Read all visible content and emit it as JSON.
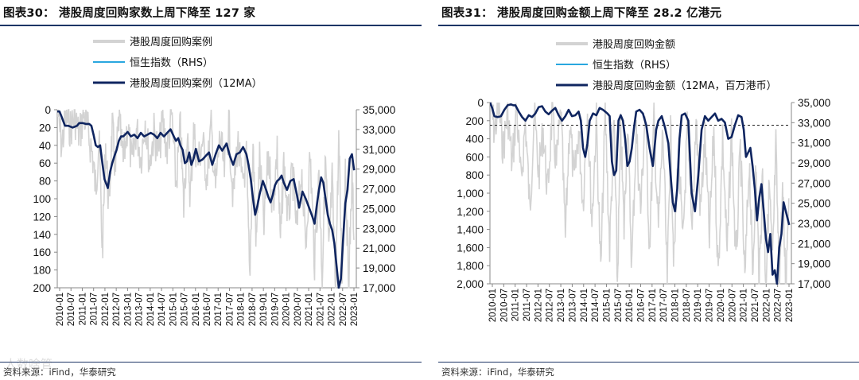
{
  "left": {
    "title": "图表30：  港股周度回购家数上周下降至 127 家",
    "source": "资料来源：iFind，华泰研究",
    "watermark": "人数啥管",
    "legend": [
      "港股周度回购案例",
      "恒生指数（RHS）",
      "港股周度回购案例（12MA）"
    ]
  },
  "right": {
    "title": "图表31：  港股周度回购金额上周下降至 28.2 亿港元",
    "source": "资料来源：iFind，华泰研究",
    "legend": [
      "港股周度回购金额",
      "恒生指数（RHS）",
      "港股周度回购金额（12MA，百万港币）"
    ]
  },
  "colors": {
    "weekly": "#d3d3d3",
    "ma": "#0f2560",
    "hsi": "#29a7df",
    "rule": "#1d3566"
  },
  "chart_data": [
    {
      "type": "line",
      "title": "港股周度回购家数上周下降至 127 家",
      "y_left": {
        "ticks": [
          "0",
          "20",
          "40",
          "60",
          "80",
          "100",
          "120",
          "140",
          "160",
          "180",
          "200"
        ],
        "range": [
          0,
          200
        ],
        "inverted": true
      },
      "y_right": {
        "ticks": [
          "35,000",
          "33,000",
          "31,000",
          "29,000",
          "27,000",
          "25,000",
          "23,000",
          "21,000",
          "19,000",
          "17,000"
        ],
        "range": [
          17000,
          35000
        ]
      },
      "x_ticks": [
        "2010-01",
        "2010-07",
        "2011-01",
        "2011-07",
        "2012-01",
        "2012-07",
        "2013-01",
        "2013-07",
        "2014-01",
        "2014-07",
        "2015-01",
        "2015-07",
        "2016-01",
        "2016-07",
        "2017-01",
        "2017-07",
        "2018-01",
        "2018-07",
        "2019-01",
        "2019-07",
        "2020-01",
        "2020-07",
        "2021-01",
        "2021-07",
        "2022-01",
        "2022-07",
        "2023-01"
      ],
      "x_range": [
        2010.0,
        2023.6
      ],
      "series": [
        {
          "name": "港股周度回购案例（12MA）",
          "x": [
            2010.0,
            2010.1,
            2010.2,
            2010.35,
            2010.5,
            2010.7,
            2010.9,
            2011.0,
            2011.15,
            2011.3,
            2011.45,
            2011.55,
            2011.65,
            2011.75,
            2011.85,
            2011.95,
            2012.05,
            2012.15,
            2012.3,
            2012.4,
            2012.5,
            2012.6,
            2012.7,
            2012.8,
            2012.9,
            2013.0,
            2013.2,
            2013.35,
            2013.5,
            2013.65,
            2013.8,
            2013.95,
            2014.1,
            2014.25,
            2014.4,
            2014.55,
            2014.7,
            2014.85,
            2015.0,
            2015.15,
            2015.3,
            2015.4,
            2015.5,
            2015.6,
            2015.7,
            2015.8,
            2015.9,
            2016.0,
            2016.1,
            2016.2,
            2016.3,
            2016.45,
            2016.6,
            2016.75,
            2016.9,
            2017.05,
            2017.2,
            2017.35,
            2017.5,
            2017.6,
            2017.7,
            2017.85,
            2018.0,
            2018.15,
            2018.3,
            2018.45,
            2018.6,
            2018.7,
            2018.8,
            2018.9,
            2019.0,
            2019.1,
            2019.2,
            2019.35,
            2019.5,
            2019.6,
            2019.7,
            2019.8,
            2019.9,
            2020.0,
            2020.1,
            2020.2,
            2020.3,
            2020.45,
            2020.6,
            2020.75,
            2020.9,
            2021.0,
            2021.15,
            2021.3,
            2021.45,
            2021.6,
            2021.7,
            2021.8,
            2021.9,
            2022.0,
            2022.1,
            2022.2,
            2022.3,
            2022.4,
            2022.5,
            2022.6,
            2022.7,
            2022.8,
            2022.9,
            2023.0,
            2023.1,
            2023.2,
            2023.3,
            2023.4,
            2023.5
          ],
          "values": [
            2,
            2,
            8,
            18,
            18,
            20,
            18,
            15,
            15,
            16,
            16,
            18,
            28,
            40,
            42,
            40,
            60,
            78,
            88,
            70,
            60,
            52,
            45,
            35,
            30,
            30,
            25,
            30,
            28,
            32,
            26,
            30,
            28,
            26,
            28,
            32,
            26,
            30,
            26,
            22,
            30,
            35,
            32,
            40,
            45,
            60,
            58,
            48,
            62,
            55,
            44,
            58,
            56,
            52,
            48,
            62,
            50,
            40,
            46,
            42,
            38,
            52,
            62,
            50,
            48,
            42,
            50,
            62,
            78,
            100,
            118,
            108,
            95,
            80,
            90,
            98,
            104,
            96,
            85,
            80,
            78,
            74,
            82,
            90,
            80,
            78,
            96,
            110,
            92,
            100,
            110,
            120,
            128,
            108,
            90,
            76,
            82,
            100,
            118,
            128,
            135,
            150,
            175,
            200,
            190,
            145,
            105,
            90,
            55,
            50,
            68
          ],
          "style": "solid"
        },
        {
          "name": "港股周度回购案例",
          "x": [
            2010.0,
            2010.2,
            2010.4,
            2010.6,
            2010.8,
            2011.0,
            2011.2,
            2011.4,
            2011.6,
            2011.75,
            2011.9,
            2012.05,
            2012.2,
            2012.35,
            2012.5,
            2012.65,
            2012.8,
            2013.0,
            2013.2,
            2013.4,
            2013.6,
            2013.8,
            2014.0,
            2014.2,
            2014.4,
            2014.6,
            2014.8,
            2015.0,
            2015.2,
            2015.4,
            2015.6,
            2015.75,
            2015.9,
            2016.05,
            2016.2,
            2016.4,
            2016.6,
            2016.8,
            2017.0,
            2017.2,
            2017.4,
            2017.6,
            2017.8,
            2018.0,
            2018.2,
            2018.4,
            2018.6,
            2018.75,
            2018.9,
            2019.05,
            2019.2,
            2019.4,
            2019.6,
            2019.8,
            2020.0,
            2020.15,
            2020.3,
            2020.5,
            2020.7,
            2020.9,
            2021.1,
            2021.3,
            2021.5,
            2021.7,
            2021.9,
            2022.05,
            2022.2,
            2022.35,
            2022.5,
            2022.65,
            2022.8,
            2022.95,
            2023.1,
            2023.25,
            2023.4,
            2023.5
          ],
          "values": [
            0,
            40,
            10,
            20,
            8,
            30,
            5,
            25,
            50,
            90,
            30,
            160,
            40,
            110,
            20,
            70,
            10,
            60,
            15,
            65,
            20,
            55,
            10,
            60,
            25,
            50,
            15,
            45,
            5,
            85,
            20,
            110,
            30,
            95,
            25,
            60,
            35,
            75,
            20,
            90,
            30,
            70,
            15,
            100,
            35,
            85,
            55,
            190,
            40,
            150,
            55,
            130,
            50,
            110,
            45,
            150,
            60,
            125,
            70,
            140,
            65,
            155,
            50,
            170,
            75,
            185,
            55,
            165,
            80,
            200,
            35,
            185,
            60,
            200,
            75,
            140
          ],
          "style": "noise"
        }
      ]
    },
    {
      "type": "line",
      "title": "港股周度回购金额上周下降至 28.2 亿港元",
      "y_left": {
        "ticks": [
          "0",
          "200",
          "400",
          "600",
          "800",
          "1,000",
          "1,200",
          "1,400",
          "1,600",
          "1,800",
          "2,000"
        ],
        "range": [
          0,
          2000
        ],
        "inverted": true
      },
      "y_right": {
        "ticks": [
          "35,000",
          "33,000",
          "31,000",
          "29,000",
          "27,000",
          "25,000",
          "23,000",
          "21,000",
          "19,000",
          "17,000"
        ],
        "range": [
          17000,
          35000
        ]
      },
      "x_ticks": [
        "2010-01",
        "2010-07",
        "2011-01",
        "2011-07",
        "2012-01",
        "2012-07",
        "2013-01",
        "2013-07",
        "2014-01",
        "2014-07",
        "2015-01",
        "2015-07",
        "2016-01",
        "2016-07",
        "2017-01",
        "2017-07",
        "2018-01",
        "2018-07",
        "2019-01",
        "2019-07",
        "2020-01",
        "2020-07",
        "2021-01",
        "2021-07",
        "2022-01",
        "2022-07",
        "2023-01"
      ],
      "x_range": [
        2010.0,
        2023.6
      ],
      "reference_line": 250,
      "series": [
        {
          "name": "港股周度回购金额（12MA，百万港币）",
          "x": [
            2010.0,
            2010.1,
            2010.2,
            2010.35,
            2010.5,
            2010.65,
            2010.8,
            2010.95,
            2011.05,
            2011.15,
            2011.3,
            2011.45,
            2011.6,
            2011.75,
            2011.9,
            2012.05,
            2012.2,
            2012.35,
            2012.5,
            2012.65,
            2012.8,
            2012.95,
            2013.1,
            2013.25,
            2013.4,
            2013.55,
            2013.7,
            2013.85,
            2014.0,
            2014.1,
            2014.2,
            2014.3,
            2014.4,
            2014.5,
            2014.65,
            2014.8,
            2014.95,
            2015.1,
            2015.2,
            2015.3,
            2015.4,
            2015.5,
            2015.6,
            2015.7,
            2015.8,
            2015.9,
            2016.0,
            2016.1,
            2016.2,
            2016.3,
            2016.4,
            2016.5,
            2016.6,
            2016.75,
            2016.9,
            2017.05,
            2017.2,
            2017.35,
            2017.5,
            2017.6,
            2017.75,
            2017.9,
            2018.05,
            2018.15,
            2018.25,
            2018.35,
            2018.45,
            2018.55,
            2018.65,
            2018.8,
            2018.95,
            2019.1,
            2019.25,
            2019.4,
            2019.55,
            2019.7,
            2019.85,
            2020.0,
            2020.15,
            2020.3,
            2020.45,
            2020.6,
            2020.75,
            2020.9,
            2021.05,
            2021.2,
            2021.35,
            2021.45,
            2021.55,
            2021.65,
            2021.75,
            2021.85,
            2021.95,
            2022.05,
            2022.15,
            2022.25,
            2022.35,
            2022.45,
            2022.55,
            2022.65,
            2022.75,
            2022.85,
            2022.95,
            2023.05,
            2023.15,
            2023.25,
            2023.35,
            2023.45,
            2023.5
          ],
          "values": [
            0,
            60,
            150,
            160,
            150,
            80,
            30,
            20,
            30,
            30,
            100,
            160,
            200,
            140,
            160,
            120,
            50,
            40,
            100,
            130,
            90,
            60,
            140,
            200,
            150,
            80,
            150,
            140,
            100,
            200,
            500,
            600,
            450,
            200,
            120,
            140,
            60,
            80,
            100,
            120,
            150,
            650,
            800,
            750,
            200,
            140,
            200,
            400,
            700,
            650,
            500,
            280,
            100,
            80,
            120,
            250,
            500,
            700,
            300,
            200,
            150,
            280,
            450,
            800,
            1100,
            1200,
            950,
            400,
            140,
            120,
            200,
            1000,
            1200,
            800,
            300,
            150,
            200,
            160,
            120,
            200,
            180,
            220,
            400,
            380,
            250,
            140,
            160,
            300,
            600,
            550,
            500,
            700,
            950,
            1300,
            1050,
            900,
            1200,
            1500,
            1650,
            1450,
            1900,
            1850,
            2000,
            1600,
            1450,
            1100,
            1200,
            1300,
            1350
          ]
        },
        {
          "name": "港股周度回购金额",
          "x": [
            2010.0,
            2010.2,
            2010.4,
            2010.6,
            2010.8,
            2011.0,
            2011.2,
            2011.4,
            2011.6,
            2011.8,
            2012.0,
            2012.2,
            2012.4,
            2012.6,
            2012.8,
            2013.0,
            2013.2,
            2013.4,
            2013.6,
            2013.8,
            2014.0,
            2014.2,
            2014.4,
            2014.6,
            2014.8,
            2015.0,
            2015.2,
            2015.4,
            2015.6,
            2015.75,
            2015.9,
            2016.05,
            2016.2,
            2016.4,
            2016.6,
            2016.8,
            2017.0,
            2017.2,
            2017.4,
            2017.6,
            2017.8,
            2018.0,
            2018.15,
            2018.3,
            2018.5,
            2018.7,
            2018.9,
            2019.1,
            2019.3,
            2019.5,
            2019.7,
            2019.9,
            2020.1,
            2020.3,
            2020.5,
            2020.7,
            2020.9,
            2021.1,
            2021.3,
            2021.5,
            2021.7,
            2021.85,
            2022.0,
            2022.15,
            2022.3,
            2022.45,
            2022.6,
            2022.75,
            2022.9,
            2023.05,
            2023.2,
            2023.35,
            2023.5
          ],
          "values": [
            0,
            300,
            80,
            500,
            100,
            700,
            50,
            900,
            200,
            1200,
            100,
            800,
            300,
            1000,
            150,
            700,
            100,
            1500,
            200,
            900,
            300,
            1100,
            100,
            1300,
            200,
            1900,
            100,
            1600,
            200,
            2000,
            300,
            1400,
            200,
            1800,
            300,
            1200,
            100,
            1600,
            200,
            1400,
            300,
            2000,
            300,
            1800,
            500,
            1600,
            300,
            1400,
            200,
            1200,
            400,
            1500,
            300,
            1900,
            400,
            1700,
            300,
            1800,
            500,
            2000,
            600,
            1900,
            700,
            2000,
            800,
            2000,
            900,
            1800,
            500,
            2000,
            1000,
            2000,
            800
          ]
        }
      ]
    }
  ]
}
